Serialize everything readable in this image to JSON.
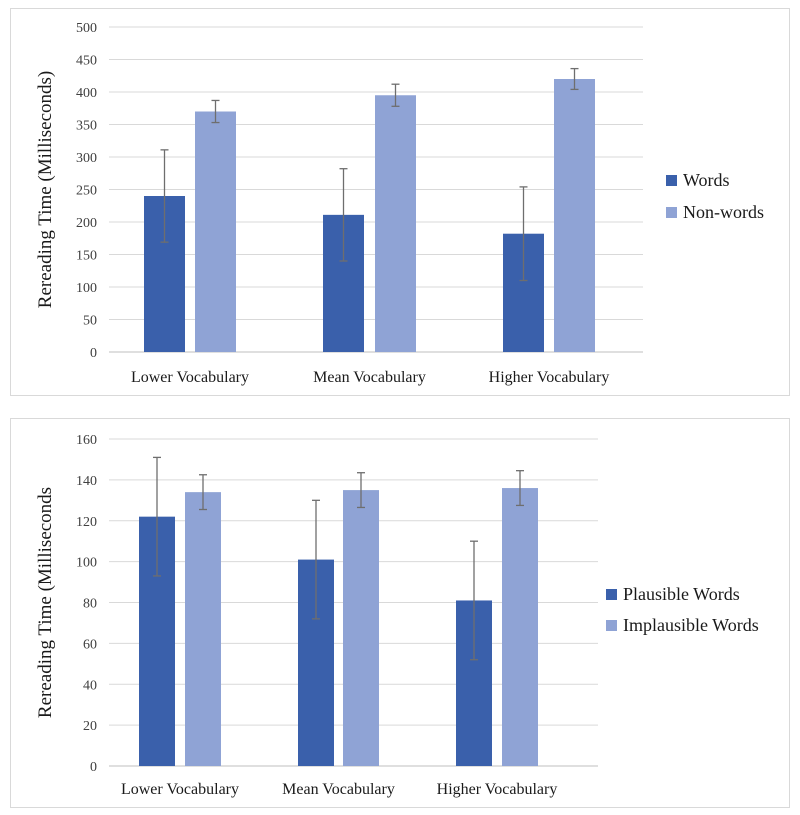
{
  "chart_data": [
    {
      "type": "bar",
      "ylabel": "Rereading Time (Milliseconds)",
      "xlabel": "",
      "ylim": [
        0,
        500
      ],
      "ytick_step": 50,
      "categories": [
        "Lower Vocabulary",
        "Mean Vocabulary",
        "Higher Vocabulary"
      ],
      "series": [
        {
          "name": "Words",
          "color": "#3a60ab",
          "values": [
            240,
            211,
            182
          ],
          "errors": [
            71,
            71,
            72
          ]
        },
        {
          "name": "Non-words",
          "color": "#8fa3d5",
          "values": [
            370,
            395,
            420
          ],
          "errors": [
            17,
            17,
            16
          ]
        }
      ],
      "legend": "right",
      "grid": true
    },
    {
      "type": "bar",
      "ylabel": "Rereading Time (Milliseconds",
      "xlabel": "",
      "ylim": [
        0,
        160
      ],
      "ytick_step": 20,
      "categories": [
        "Lower Vocabulary",
        "Mean Vocabulary",
        "Higher Vocabulary"
      ],
      "series": [
        {
          "name": "Plausible Words",
          "color": "#3a60ab",
          "values": [
            122,
            101,
            81
          ],
          "errors": [
            29,
            29,
            29
          ]
        },
        {
          "name": "Implausible Words",
          "color": "#8fa3d5",
          "values": [
            134,
            135,
            136
          ],
          "errors": [
            8.5,
            8.5,
            8.5
          ]
        }
      ],
      "legend": "right",
      "grid": true
    }
  ]
}
